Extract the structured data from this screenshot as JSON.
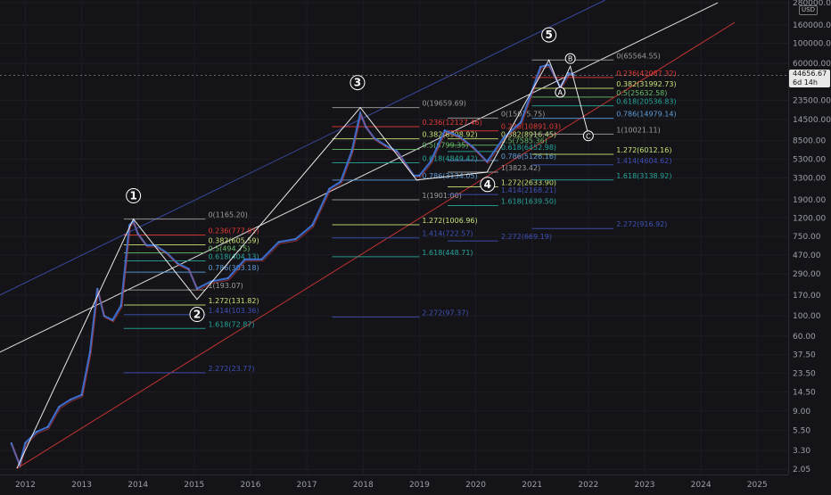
{
  "price_scale": {
    "currency": "USD",
    "labels": [
      "280000.00",
      "160000.00",
      "100000.00",
      "60000.00",
      "23500.00",
      "14500.00",
      "8500.00",
      "5300.00",
      "3300.00",
      "1900.00",
      "1200.00",
      "750.00",
      "470.00",
      "290.00",
      "170.00",
      "100.00",
      "60.00",
      "37.50",
      "23.50",
      "14.50",
      "9.00",
      "5.50",
      "3.30",
      "2.05"
    ]
  },
  "current_price": {
    "value": "44656.67",
    "countdown": "6d 14h"
  },
  "chart_data": {
    "type": "line",
    "title": "",
    "xlabel": "",
    "ylabel": "",
    "log_scale": true,
    "x_ticks": [
      "2012",
      "2013",
      "2014",
      "2015",
      "2016",
      "2017",
      "2018",
      "2019",
      "2020",
      "2021",
      "2022",
      "2023",
      "2024",
      "2025"
    ],
    "y_ticks": [
      280000,
      160000,
      100000,
      60000,
      23500,
      14500,
      8500,
      5300,
      3300,
      1900,
      1200,
      750,
      470,
      290,
      170,
      100,
      60,
      37.5,
      23.5,
      14.5,
      9,
      5.5,
      3.3,
      2.05
    ],
    "ylim": [
      1.8,
      300000
    ],
    "xlim": [
      2011.55,
      2025.55
    ],
    "series": [
      {
        "x": [
          2011.75,
          2011.9,
          2012.0,
          2012.2,
          2012.4,
          2012.6,
          2012.8,
          2013.0,
          2013.15,
          2013.28,
          2013.4,
          2013.55,
          2013.7,
          2013.85,
          2013.92,
          2014.0,
          2014.15,
          2014.3,
          2014.5,
          2014.7,
          2014.9,
          2015.05,
          2015.3,
          2015.6,
          2015.9,
          2016.2,
          2016.5,
          2016.8,
          2017.1,
          2017.4,
          2017.6,
          2017.8,
          2017.95,
          2018.05,
          2018.2,
          2018.4,
          2018.6,
          2018.9,
          2019.0,
          2019.2,
          2019.45,
          2019.7,
          2019.95,
          2020.2,
          2020.5,
          2020.8,
          2021.0,
          2021.15,
          2021.3,
          2021.5,
          2021.65,
          2021.75
        ],
        "y": [
          4,
          2.3,
          4,
          5.3,
          6,
          10,
          12,
          13.5,
          40,
          200,
          100,
          90,
          130,
          1000,
          1100,
          800,
          600,
          600,
          500,
          380,
          330,
          200,
          240,
          260,
          420,
          420,
          650,
          700,
          1000,
          2500,
          3000,
          6500,
          17000,
          12000,
          9000,
          7500,
          6500,
          3500,
          3500,
          5000,
          11000,
          9500,
          7200,
          5000,
          9200,
          13500,
          30000,
          55000,
          58000,
          33000,
          47000,
          44656
        ]
      }
    ],
    "wave_labels": [
      {
        "label": "1",
        "x": 2013.92,
        "y": 2100
      },
      {
        "label": "2",
        "x": 2015.05,
        "y": 104
      },
      {
        "label": "3",
        "x": 2017.9,
        "y": 37000
      },
      {
        "label": "4",
        "x": 2020.21,
        "y": 2800
      },
      {
        "label": "5",
        "x": 2021.3,
        "y": 124000
      },
      {
        "label": "A",
        "x": 2021.5,
        "y": 29000
      },
      {
        "label": "B",
        "x": 2021.68,
        "y": 68000
      },
      {
        "label": "C",
        "x": 2022.0,
        "y": 9600
      }
    ],
    "fib_sets": [
      {
        "name": "wave1-2",
        "x_start": 2013.75,
        "x_end": 2015.2,
        "label_x": 2015.2,
        "levels": [
          {
            "text": "0(1165.20)",
            "value": 1165.2,
            "color": "#9e9e9e"
          },
          {
            "text": "0.236(777.91)",
            "value": 777.91,
            "color": "#e53935"
          },
          {
            "text": "0.382(605.59)",
            "value": 605.59,
            "color": "#c6e377"
          },
          {
            "text": "0.5(494.75)",
            "value": 494.75,
            "color": "#66bb6a"
          },
          {
            "text": "0.618(404.13)",
            "value": 404.13,
            "color": "#26a69a"
          },
          {
            "text": "0.786(303.18)",
            "value": 303.18,
            "color": "#5c9bd6"
          },
          {
            "text": "1(193.07)",
            "value": 193.07,
            "color": "#9e9e9e"
          },
          {
            "text": "1.272(131.82)",
            "value": 131.82,
            "color": "#c6e377"
          },
          {
            "text": "1.414(103.36)",
            "value": 103.36,
            "color": "#3f51b5"
          },
          {
            "text": "1.618(72.87)",
            "value": 72.87,
            "color": "#26a69a"
          },
          {
            "text": "2.272(23.77)",
            "value": 23.77,
            "color": "#3f51b5"
          }
        ]
      },
      {
        "name": "wave3-4",
        "x_start": 2017.45,
        "x_end": 2019.0,
        "label_x": 2019.0,
        "levels": [
          {
            "text": "0(19659.69)",
            "value": 19659.69,
            "color": "#9e9e9e"
          },
          {
            "text": "0.236(12127.46)",
            "value": 12127.46,
            "color": "#e53935"
          },
          {
            "text": "0.382(8908.92)",
            "value": 8908.92,
            "color": "#c6e377"
          },
          {
            "text": "0.5(6799.35)",
            "value": 6799.35,
            "color": "#66bb6a"
          },
          {
            "text": "0.618(4849.42)",
            "value": 4849.42,
            "color": "#26a69a"
          },
          {
            "text": "0.786(3134.05)",
            "value": 3134.05,
            "color": "#5c9bd6"
          },
          {
            "text": "1(1901.00)",
            "value": 1901.0,
            "color": "#9e9e9e"
          },
          {
            "text": "1.272(1006.96)",
            "value": 1006.96,
            "color": "#c6e377"
          },
          {
            "text": "1.414(722.57)",
            "value": 722.57,
            "color": "#3f51b5"
          },
          {
            "text": "1.618(448.71)",
            "value": 448.71,
            "color": "#26a69a"
          },
          {
            "text": "2.272(97.37)",
            "value": 97.37,
            "color": "#3f51b5"
          }
        ]
      },
      {
        "name": "wave4-local",
        "x_start": 2019.5,
        "x_end": 2020.4,
        "label_x": 2020.4,
        "levels": [
          {
            "text": "0(15075.75)",
            "value": 15075.75,
            "color": "#9e9e9e"
          },
          {
            "text": "0.236(10891.03)",
            "value": 10891.03,
            "color": "#e53935"
          },
          {
            "text": "0.382(8916.45)",
            "value": 8916.45,
            "color": "#c6e377"
          },
          {
            "text": "0.5(7585.36)",
            "value": 7585.36,
            "color": "#66bb6a"
          },
          {
            "text": "0.618(6452.98)",
            "value": 6452.98,
            "color": "#26a69a"
          },
          {
            "text": "0.786(5126.16)",
            "value": 5126.16,
            "color": "#5c9bd6"
          },
          {
            "text": "1(3823.42)",
            "value": 3823.42,
            "color": "#9e9e9e"
          },
          {
            "text": "1.272(2633.90)",
            "value": 2633.9,
            "color": "#c6e377"
          },
          {
            "text": "1.414(2168.21)",
            "value": 2168.21,
            "color": "#3f51b5"
          },
          {
            "text": "1.618(1639.50)",
            "value": 1639.5,
            "color": "#26a69a"
          },
          {
            "text": "2.272(669.19)",
            "value": 669.19,
            "color": "#3f51b5"
          }
        ]
      },
      {
        "name": "wave5-abc",
        "x_start": 2021.0,
        "x_end": 2022.45,
        "label_x": 2022.45,
        "levels": [
          {
            "text": "0(65564.55)",
            "value": 65564.55,
            "color": "#9e9e9e"
          },
          {
            "text": "0.236(42087.32)",
            "value": 42087.32,
            "color": "#e53935"
          },
          {
            "text": "0.382(31992.73)",
            "value": 31992.73,
            "color": "#c6e377"
          },
          {
            "text": "0.5(25632.58)",
            "value": 25632.58,
            "color": "#66bb6a"
          },
          {
            "text": "0.618(20536.83)",
            "value": 20536.83,
            "color": "#26a69a"
          },
          {
            "text": "0.786(14979.14)",
            "value": 14979.14,
            "color": "#5c9bd6"
          },
          {
            "text": "1(10021.11)",
            "value": 10021.11,
            "color": "#9e9e9e"
          },
          {
            "text": "1.272(6012.16)",
            "value": 6012.16,
            "color": "#c6e377"
          },
          {
            "text": "1.414(4604.62)",
            "value": 4604.62,
            "color": "#3f51b5"
          },
          {
            "text": "1.618(3138.92)",
            "value": 3138.92,
            "color": "#26a69a"
          },
          {
            "text": "2.272(916.92)",
            "value": 916.92,
            "color": "#3f51b5"
          }
        ]
      }
    ],
    "wave_path": [
      {
        "x": 2011.85,
        "y": 2.1
      },
      {
        "x": 2013.92,
        "y": 1165
      },
      {
        "x": 2015.05,
        "y": 152
      },
      {
        "x": 2017.95,
        "y": 19659
      },
      {
        "x": 2018.95,
        "y": 3134
      },
      {
        "x": 2020.2,
        "y": 3823
      },
      {
        "x": 2021.3,
        "y": 65564
      },
      {
        "x": 2021.5,
        "y": 32000
      },
      {
        "x": 2021.68,
        "y": 56000
      },
      {
        "x": 2022.0,
        "y": 10021
      }
    ],
    "channel_lines": [
      {
        "color": "#ffffff",
        "points": [
          {
            "x": 2011.55,
            "y": 40
          },
          {
            "x": 2024.3,
            "y": 280000
          }
        ]
      },
      {
        "color": "#e53935",
        "points": [
          {
            "x": 2011.85,
            "y": 2.1
          },
          {
            "x": 2024.6,
            "y": 170000
          }
        ]
      },
      {
        "color": "#3f51b5",
        "points": [
          {
            "x": 2011.55,
            "y": 170
          },
          {
            "x": 2022.3,
            "y": 300000
          }
        ]
      }
    ]
  }
}
